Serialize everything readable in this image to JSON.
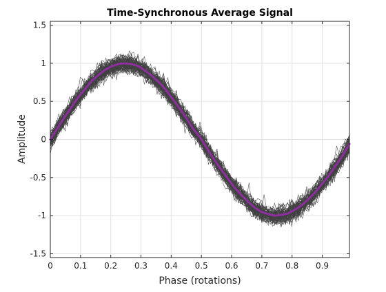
{
  "chart_data": {
    "type": "line",
    "title": "Time-Synchronous Average Signal",
    "xlabel": "Phase (rotations)",
    "ylabel": "Amplitude",
    "xlim": [
      0,
      0.99
    ],
    "ylim": [
      -1.55,
      1.55
    ],
    "xticks": [
      0,
      0.1,
      0.2,
      0.3,
      0.4,
      0.5,
      0.6,
      0.7,
      0.8,
      0.9
    ],
    "xtick_labels": [
      "0",
      "0.1",
      "0.2",
      "0.3",
      "0.4",
      "0.5",
      "0.6",
      "0.7",
      "0.8",
      "0.9"
    ],
    "yticks": [
      -1.5,
      -1,
      -0.5,
      0,
      0.5,
      1,
      1.5
    ],
    "ytick_labels": [
      "-1.5",
      "-1",
      "-0.5",
      "0",
      "0.5",
      "1",
      "1.5"
    ],
    "grid": true,
    "series": [
      {
        "role": "individual-rotations",
        "color": "#404040",
        "x": [
          0,
          0.0225,
          0.045,
          0.0675,
          0.09,
          0.1125,
          0.135,
          0.1575,
          0.18,
          0.2025,
          0.225,
          0.2475,
          0.27,
          0.2925,
          0.315,
          0.3375,
          0.36,
          0.3825,
          0.405,
          0.4275,
          0.45,
          0.4725,
          0.495,
          0.5175,
          0.54,
          0.5625,
          0.585,
          0.6075,
          0.63,
          0.6525,
          0.675,
          0.6975,
          0.72,
          0.7425,
          0.765,
          0.7875,
          0.81,
          0.8325,
          0.855,
          0.8775,
          0.9,
          0.9225,
          0.945,
          0.9675,
          0.99
        ],
        "y_center": [
          0,
          0.14,
          0.28,
          0.41,
          0.54,
          0.65,
          0.76,
          0.84,
          0.91,
          0.96,
          0.99,
          1.0,
          0.99,
          0.96,
          0.9,
          0.83,
          0.75,
          0.65,
          0.53,
          0.41,
          0.28,
          0.14,
          0.03,
          -0.11,
          -0.25,
          -0.38,
          -0.5,
          -0.62,
          -0.72,
          -0.81,
          -0.89,
          -0.95,
          -0.98,
          -1.0,
          -0.99,
          -0.97,
          -0.92,
          -0.86,
          -0.78,
          -0.69,
          -0.58,
          -0.47,
          -0.34,
          -0.21,
          -0.06
        ],
        "spread": 0.15,
        "outlier_spread": 0.28
      },
      {
        "role": "time-synchronous-average",
        "color": "#8e2f9f",
        "x": [
          0,
          0.0225,
          0.045,
          0.0675,
          0.09,
          0.1125,
          0.135,
          0.1575,
          0.18,
          0.2025,
          0.225,
          0.2475,
          0.27,
          0.2925,
          0.315,
          0.3375,
          0.36,
          0.3825,
          0.405,
          0.4275,
          0.45,
          0.4725,
          0.495,
          0.5175,
          0.54,
          0.5625,
          0.585,
          0.6075,
          0.63,
          0.6525,
          0.675,
          0.6975,
          0.72,
          0.7425,
          0.765,
          0.7875,
          0.81,
          0.8325,
          0.855,
          0.8775,
          0.9,
          0.9225,
          0.945,
          0.9675,
          0.99
        ],
        "y": [
          0,
          0.14,
          0.28,
          0.41,
          0.54,
          0.65,
          0.76,
          0.84,
          0.91,
          0.96,
          0.99,
          1.0,
          0.99,
          0.96,
          0.9,
          0.83,
          0.75,
          0.65,
          0.53,
          0.41,
          0.28,
          0.14,
          0.03,
          -0.11,
          -0.25,
          -0.38,
          -0.5,
          -0.62,
          -0.72,
          -0.81,
          -0.89,
          -0.95,
          -0.98,
          -1.0,
          -0.99,
          -0.97,
          -0.92,
          -0.86,
          -0.78,
          -0.69,
          -0.58,
          -0.47,
          -0.34,
          -0.21,
          -0.06
        ]
      }
    ]
  }
}
